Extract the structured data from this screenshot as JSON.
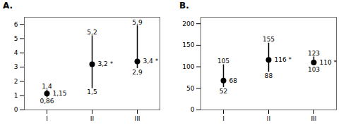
{
  "chart_data": [
    {
      "type": "point_range",
      "title": "A.",
      "categories": [
        "I",
        "II",
        "III"
      ],
      "values": [
        1.15,
        3.2,
        3.4
      ],
      "value_labels": [
        "1,15",
        "3,2 *",
        "3,4 *"
      ],
      "upper": [
        1.4,
        5.2,
        5.9
      ],
      "upper_labels": [
        "1,4",
        "5,2",
        "5,9"
      ],
      "lower": [
        0.86,
        1.5,
        2.9
      ],
      "lower_labels": [
        "0,86",
        "1,5",
        "2,9"
      ],
      "ylim": [
        0,
        6.5
      ],
      "yticks": [
        0,
        1,
        2,
        3,
        4,
        5,
        6
      ],
      "color": "#000000",
      "data_labels": true,
      "grid": false
    },
    {
      "type": "point_range",
      "title": "B.",
      "categories": [
        "I",
        "II",
        "III"
      ],
      "values": [
        68,
        116,
        110
      ],
      "value_labels": [
        "68",
        "116 *",
        "110 *"
      ],
      "upper": [
        105,
        155,
        123
      ],
      "upper_labels": [
        "105",
        "155",
        "123"
      ],
      "lower": [
        52,
        88,
        103
      ],
      "lower_labels": [
        "52",
        "88",
        "103"
      ],
      "ylim": [
        0,
        215
      ],
      "yticks": [
        0,
        50,
        100,
        150,
        200
      ],
      "color": "#000000",
      "data_labels": true,
      "grid": false
    }
  ]
}
